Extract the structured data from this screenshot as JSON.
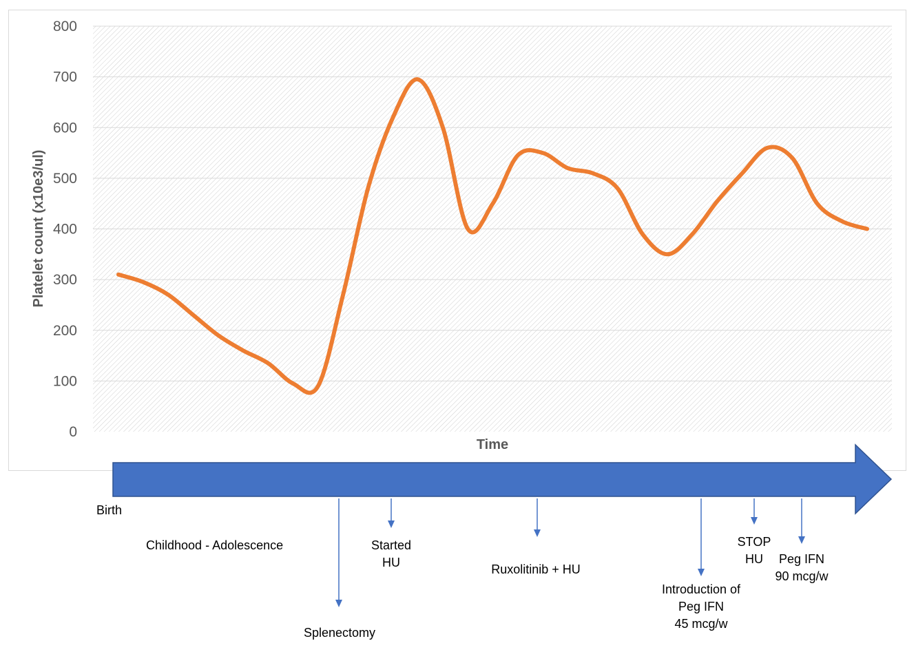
{
  "chart_data": {
    "type": "line",
    "title": "",
    "xlabel": "Time",
    "ylabel": "Platelet count (x10e3/ul)",
    "ylim": [
      0,
      800
    ],
    "yticks": [
      0,
      100,
      200,
      300,
      400,
      500,
      600,
      700,
      800
    ],
    "smooth": true,
    "grid": true,
    "series_color": "#ED7D31",
    "series": [
      {
        "name": "",
        "x": [
          0,
          1,
          2,
          3,
          4,
          5,
          6,
          7,
          8,
          9,
          10,
          11,
          12,
          13,
          14,
          15,
          16,
          17,
          18,
          19,
          20,
          21,
          22,
          23,
          24,
          25,
          26,
          27,
          28,
          29,
          30
        ],
        "values": [
          310,
          295,
          270,
          230,
          190,
          160,
          135,
          95,
          90,
          270,
          480,
          620,
          695,
          600,
          400,
          450,
          545,
          550,
          520,
          510,
          480,
          390,
          350,
          390,
          455,
          510,
          560,
          540,
          450,
          415,
          400
        ]
      }
    ]
  },
  "timeline": {
    "arrow_color": "#4472C4",
    "birth_label": "Birth",
    "period_label": "Childhood - Adolescence",
    "events": [
      {
        "id": "splenectomy",
        "lines": [
          "Splenectomy"
        ]
      },
      {
        "id": "started-hu",
        "lines": [
          "Started",
          "HU"
        ]
      },
      {
        "id": "ruxolitinib",
        "lines": [
          "Ruxolitinib + HU"
        ]
      },
      {
        "id": "peg-ifn-45",
        "lines": [
          "Introduction of",
          "Peg IFN",
          "45 mcg/w"
        ]
      },
      {
        "id": "stop-hu",
        "lines": [
          "STOP",
          "HU"
        ]
      },
      {
        "id": "peg-ifn-90",
        "lines": [
          "Peg IFN",
          "90 mcg/w"
        ]
      }
    ]
  }
}
